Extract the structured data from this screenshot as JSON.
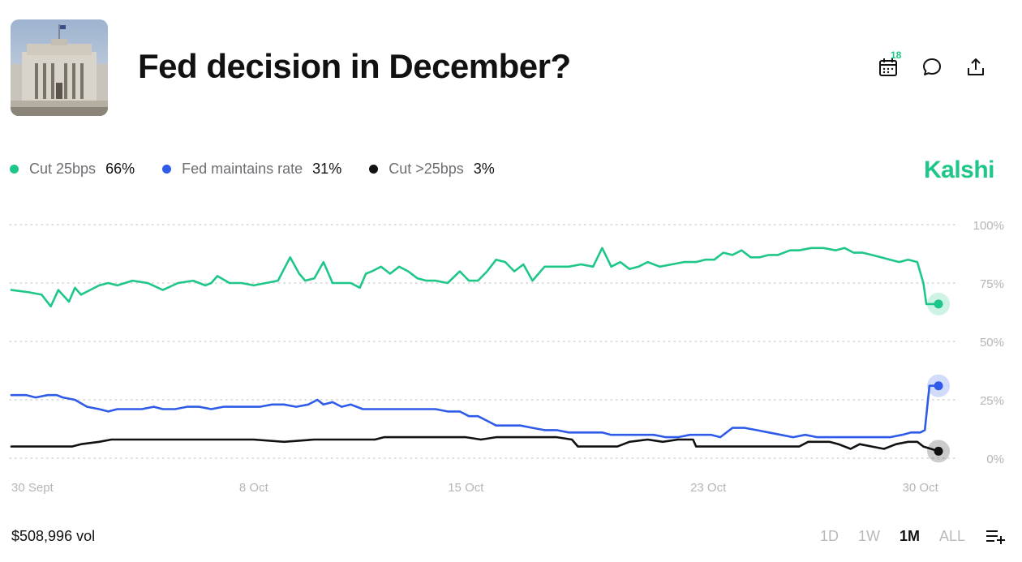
{
  "header": {
    "title": "Fed decision in December?",
    "calendar_badge": "18",
    "brand": "Kalshi"
  },
  "colors": {
    "cut25": "#1ec787",
    "maintain": "#2f5bea",
    "cut_gt25": "#111111",
    "gridline": "#d3d3d6",
    "tick_label": "#b5b5b9"
  },
  "icons": {
    "calendar": "calendar-icon",
    "comment": "comment-icon",
    "share": "share-icon",
    "add_series": "add-series-icon"
  },
  "legend": [
    {
      "name": "Cut 25bps",
      "value": "66%",
      "color": "#1ec787"
    },
    {
      "name": "Fed maintains rate",
      "value": "31%",
      "color": "#2f5bea"
    },
    {
      "name": "Cut >25bps",
      "value": "3%",
      "color": "#111111"
    }
  ],
  "footer": {
    "volume": "$508,996 vol",
    "ranges": [
      "1D",
      "1W",
      "1M",
      "ALL"
    ],
    "active_range": "1M"
  },
  "chart_data": {
    "type": "line",
    "x_ticks": [
      "30 Sept",
      "8 Oct",
      "15 Oct",
      "23 Oct",
      "30 Oct"
    ],
    "x_tick_days": [
      0,
      8,
      15,
      23,
      30
    ],
    "x_range": [
      0,
      31
    ],
    "y_ticks": [
      "100%",
      "75%",
      "50%",
      "25%",
      "0%"
    ],
    "y_tick_values": [
      100,
      75,
      50,
      25,
      0
    ],
    "ylim": [
      0,
      100
    ],
    "grid": true,
    "series": [
      {
        "name": "Cut 25bps",
        "color": "#1ec787",
        "x": [
          0,
          0.6,
          1.0,
          1.3,
          1.55,
          1.9,
          2.1,
          2.3,
          2.6,
          2.9,
          3.2,
          3.5,
          4.0,
          4.5,
          5.0,
          5.5,
          6.0,
          6.4,
          6.6,
          6.8,
          7.2,
          7.6,
          8.0,
          8.4,
          8.8,
          9.2,
          9.5,
          9.7,
          10.0,
          10.3,
          10.6,
          10.9,
          11.2,
          11.5,
          11.7,
          11.9,
          12.2,
          12.5,
          12.8,
          13.1,
          13.4,
          13.7,
          14.0,
          14.4,
          14.8,
          15.1,
          15.4,
          15.7,
          16.0,
          16.3,
          16.6,
          16.9,
          17.2,
          17.6,
          18.0,
          18.4,
          18.8,
          19.2,
          19.5,
          19.8,
          20.1,
          20.4,
          20.7,
          21.0,
          21.4,
          21.8,
          22.2,
          22.6,
          22.9,
          23.2,
          23.5,
          23.8,
          24.1,
          24.4,
          24.7,
          25.0,
          25.3,
          25.7,
          26.0,
          26.4,
          26.8,
          27.2,
          27.5,
          27.8,
          28.1,
          28.4,
          28.7,
          29.0,
          29.3,
          29.6,
          29.9,
          30.1,
          30.2,
          30.35,
          30.6
        ],
        "values": [
          72,
          71,
          70,
          65,
          72,
          67,
          73,
          70,
          72,
          74,
          75,
          74,
          76,
          75,
          72,
          75,
          76,
          74,
          75,
          78,
          75,
          75,
          74,
          75,
          76,
          86,
          79,
          76,
          77,
          84,
          75,
          75,
          75,
          73,
          79,
          80,
          82,
          79,
          82,
          80,
          77,
          76,
          76,
          75,
          80,
          76,
          76,
          80,
          85,
          84,
          80,
          83,
          76,
          82,
          82,
          82,
          83,
          82,
          90,
          82,
          84,
          81,
          82,
          84,
          82,
          83,
          84,
          84,
          85,
          85,
          88,
          87,
          89,
          86,
          86,
          87,
          87,
          89,
          89,
          90,
          90,
          89,
          90,
          88,
          88,
          87,
          86,
          85,
          84,
          85,
          84,
          75,
          66,
          66,
          66
        ]
      },
      {
        "name": "Fed maintains rate",
        "color": "#2f5bea",
        "x": [
          0,
          0.5,
          0.8,
          1.2,
          1.5,
          1.7,
          2.1,
          2.5,
          2.9,
          3.2,
          3.5,
          3.9,
          4.3,
          4.7,
          5.0,
          5.4,
          5.8,
          6.2,
          6.6,
          7.0,
          7.4,
          7.8,
          8.2,
          8.6,
          9.0,
          9.4,
          9.8,
          10.1,
          10.3,
          10.6,
          10.9,
          11.2,
          11.6,
          12.0,
          12.4,
          12.8,
          13.2,
          13.6,
          14.0,
          14.4,
          14.8,
          15.1,
          15.4,
          15.7,
          16.0,
          16.4,
          16.8,
          17.2,
          17.6,
          18.0,
          18.4,
          18.8,
          19.2,
          19.5,
          19.8,
          20.1,
          20.4,
          20.8,
          21.2,
          21.6,
          22.0,
          22.4,
          22.8,
          23.1,
          23.4,
          23.8,
          24.2,
          24.6,
          25.0,
          25.4,
          25.8,
          26.2,
          26.6,
          27.0,
          27.4,
          27.8,
          28.2,
          28.6,
          29.0,
          29.4,
          29.7,
          30.0,
          30.15,
          30.3,
          30.6
        ],
        "values": [
          27,
          27,
          26,
          27,
          27,
          26,
          25,
          22,
          21,
          20,
          21,
          21,
          21,
          22,
          21,
          21,
          22,
          22,
          21,
          22,
          22,
          22,
          22,
          23,
          23,
          22,
          23,
          25,
          23,
          24,
          22,
          23,
          21,
          21,
          21,
          21,
          21,
          21,
          21,
          20,
          20,
          18,
          18,
          16,
          14,
          14,
          14,
          13,
          12,
          12,
          11,
          11,
          11,
          11,
          10,
          10,
          10,
          10,
          10,
          9,
          9,
          10,
          10,
          10,
          9,
          13,
          13,
          12,
          11,
          10,
          9,
          10,
          9,
          9,
          9,
          9,
          9,
          9,
          9,
          10,
          11,
          11,
          12,
          31,
          31
        ]
      },
      {
        "name": "Cut >25bps",
        "color": "#111111",
        "x": [
          0,
          1.0,
          2.0,
          2.3,
          2.9,
          3.3,
          4.0,
          5.0,
          6.0,
          7.0,
          8.0,
          9.0,
          10.0,
          11.0,
          12.0,
          12.3,
          13.0,
          14.0,
          15.0,
          15.5,
          16.0,
          16.5,
          17.0,
          17.5,
          18.0,
          18.5,
          18.7,
          19.0,
          19.5,
          20.0,
          20.4,
          21.0,
          21.5,
          22.0,
          22.5,
          22.6,
          23.0,
          24.0,
          25.0,
          26.0,
          26.3,
          27.0,
          27.3,
          27.7,
          28.0,
          28.4,
          28.8,
          29.2,
          29.6,
          29.9,
          30.1,
          30.6
        ],
        "values": [
          5,
          5,
          5,
          6,
          7,
          8,
          8,
          8,
          8,
          8,
          8,
          7,
          8,
          8,
          8,
          9,
          9,
          9,
          9,
          8,
          9,
          9,
          9,
          9,
          9,
          8,
          5,
          5,
          5,
          5,
          7,
          8,
          7,
          8,
          8,
          5,
          5,
          5,
          5,
          5,
          7,
          7,
          6,
          4,
          6,
          5,
          4,
          6,
          7,
          7,
          5,
          3
        ]
      }
    ]
  }
}
